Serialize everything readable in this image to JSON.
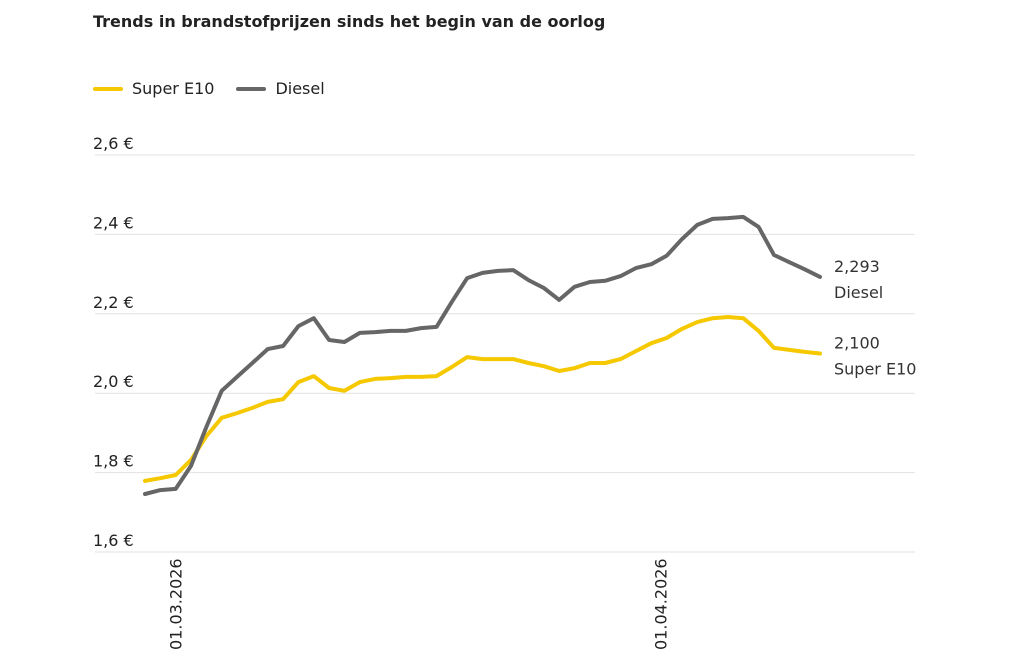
{
  "chart_data": {
    "type": "line",
    "title": "Trends in brandstofprijzen sinds het begin van de oorlog",
    "xlabel": "",
    "ylabel": "",
    "ylim": [
      1.6,
      2.6
    ],
    "yticks": [
      1.6,
      1.8,
      2.0,
      2.2,
      2.4,
      2.6
    ],
    "ytick_labels": [
      "1,6 €",
      "1,8 €",
      "2,0 €",
      "2,2 €",
      "2,4 €",
      "2,6 €"
    ],
    "xticks": [
      {
        "index": 2,
        "label": "01.03.2026"
      },
      {
        "index": 33,
        "label": "01.04.2026"
      }
    ],
    "grid": true,
    "legend_position": "top-left",
    "series": [
      {
        "name": "Super E10",
        "color": "#f5c800",
        "end_label": "2,100",
        "end_name": "Super E10",
        "values": [
          1.779,
          1.786,
          1.794,
          1.832,
          1.892,
          1.938,
          1.95,
          1.963,
          1.978,
          1.985,
          2.028,
          2.043,
          2.013,
          2.006,
          2.028,
          2.036,
          2.038,
          2.041,
          2.041,
          2.043,
          2.066,
          2.091,
          2.086,
          2.086,
          2.086,
          2.076,
          2.068,
          2.056,
          2.063,
          2.076,
          2.076,
          2.086,
          2.106,
          2.126,
          2.139,
          2.162,
          2.179,
          2.189,
          2.192,
          2.189,
          2.157,
          2.114,
          2.109,
          2.104,
          2.1
        ]
      },
      {
        "name": "Diesel",
        "color": "#666666",
        "end_label": "2,293",
        "end_name": "Diesel",
        "values": [
          1.746,
          1.756,
          1.759,
          1.817,
          1.915,
          2.006,
          2.041,
          2.076,
          2.111,
          2.119,
          2.169,
          2.189,
          2.134,
          2.129,
          2.152,
          2.154,
          2.157,
          2.157,
          2.164,
          2.167,
          2.23,
          2.29,
          2.303,
          2.308,
          2.31,
          2.285,
          2.265,
          2.235,
          2.268,
          2.28,
          2.283,
          2.295,
          2.315,
          2.325,
          2.346,
          2.388,
          2.424,
          2.439,
          2.441,
          2.444,
          2.419,
          2.348,
          2.33,
          2.312,
          2.293
        ]
      }
    ]
  }
}
